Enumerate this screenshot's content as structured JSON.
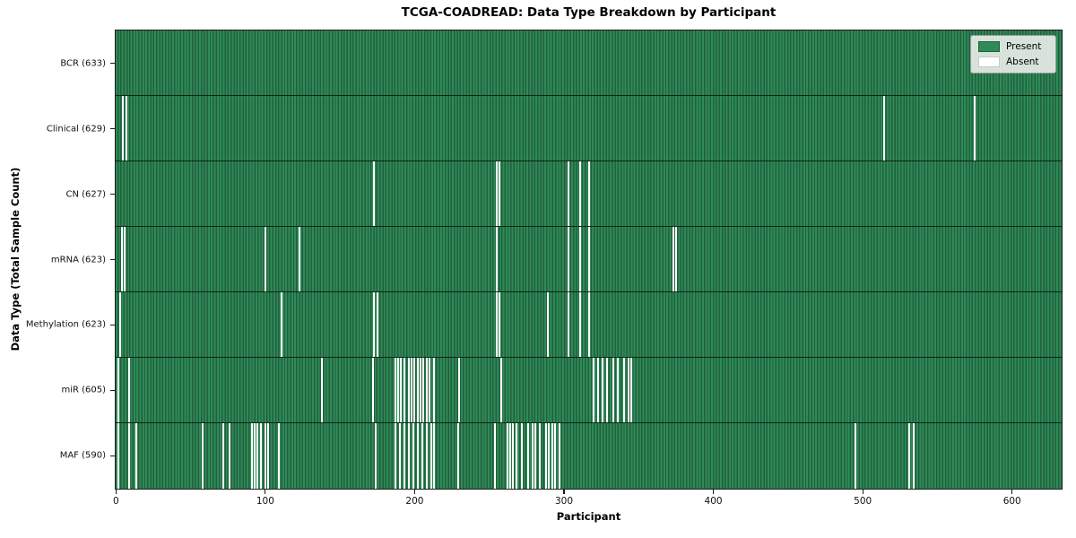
{
  "chart_data": {
    "type": "heatmap",
    "title": "TCGA-COADREAD: Data Type Breakdown by Participant",
    "xlabel": "Participant",
    "ylabel": "Data Type (Total Sample Count)",
    "xlim": [
      0,
      633
    ],
    "x_ticks": [
      0,
      100,
      200,
      300,
      400,
      500,
      600
    ],
    "grid": false,
    "legend_position": "upper right",
    "legend": [
      {
        "label": "Present",
        "color": "#2e8b57"
      },
      {
        "label": "Absent",
        "color": "#ffffff"
      }
    ],
    "colors": {
      "present": "#2e8b57",
      "present_edge": "#215f3d",
      "absent": "#ffffff",
      "row_divider": "#0e2418",
      "spine": "#1a1a1a"
    },
    "rows": [
      {
        "label": "BCR (633)",
        "count": 633,
        "absent": []
      },
      {
        "label": "Clinical (629)",
        "count": 629,
        "absent": [
          5,
          7,
          514,
          575
        ]
      },
      {
        "label": "CN (627)",
        "count": 627,
        "absent": [
          173,
          255,
          257,
          303,
          311,
          317
        ]
      },
      {
        "label": "mRNA (623)",
        "count": 623,
        "absent": [
          4,
          6,
          100,
          123,
          255,
          303,
          311,
          317,
          373,
          375
        ]
      },
      {
        "label": "Methylation (623)",
        "count": 623,
        "absent": [
          3,
          111,
          173,
          175,
          255,
          257,
          289,
          303,
          311,
          317
        ]
      },
      {
        "label": "miR (605)",
        "count": 605,
        "absent": [
          2,
          9,
          138,
          172,
          187,
          189,
          191,
          193,
          196,
          198,
          200,
          202,
          204,
          206,
          208,
          210,
          213,
          230,
          258,
          320,
          323,
          326,
          329,
          333,
          336,
          340,
          343,
          345
        ]
      },
      {
        "label": "MAF (590)",
        "count": 590,
        "absent": [
          2,
          9,
          14,
          58,
          72,
          76,
          91,
          93,
          95,
          97,
          100,
          102,
          109,
          174,
          187,
          190,
          193,
          196,
          199,
          202,
          205,
          208,
          211,
          213,
          229,
          254,
          262,
          264,
          266,
          268,
          272,
          276,
          279,
          281,
          284,
          288,
          290,
          292,
          294,
          297,
          495,
          531,
          534
        ]
      }
    ]
  }
}
